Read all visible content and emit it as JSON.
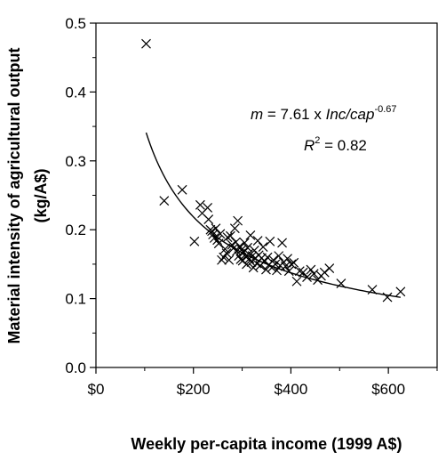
{
  "chart_data": {
    "type": "scatter",
    "xlabel": "Weekly per-capita income (1999 A$)",
    "ylabel_lines": [
      "Material intensity of agricultural output",
      "(kg/A$)"
    ],
    "xlim": [
      0,
      700
    ],
    "ylim": [
      0.0,
      0.5
    ],
    "x_ticks": [
      0,
      200,
      400,
      600
    ],
    "x_tick_labels": [
      "$0",
      "$200",
      "$400",
      "$600"
    ],
    "x_minor_ticks": [
      100,
      300,
      500,
      700
    ],
    "y_ticks": [
      0.0,
      0.1,
      0.2,
      0.3,
      0.4,
      0.5
    ],
    "y_tick_labels": [
      "0.0",
      "0.1",
      "0.2",
      "0.3",
      "0.4",
      "0.5"
    ],
    "y_minor_ticks": [
      0.05,
      0.15,
      0.25,
      0.35,
      0.45
    ],
    "grid": false,
    "legend": "none",
    "marker": "x",
    "marker_color": "#000000",
    "fit_color": "#000000",
    "annotation": {
      "line1": {
        "m": "m",
        "eq": " = 7.61 x ",
        "inc": "Inc",
        "slash": "/",
        "cap": "cap",
        "exp": "-0.67"
      },
      "line2": {
        "r": "R",
        "exp": "2",
        "val": " = 0.82"
      }
    },
    "fit": {
      "coefficient": 7.61,
      "exponent": -0.67,
      "x_range": [
        103,
        625
      ]
    },
    "points": [
      [
        103,
        0.47
      ],
      [
        140,
        0.242
      ],
      [
        177,
        0.258
      ],
      [
        202,
        0.183
      ],
      [
        214,
        0.236
      ],
      [
        218,
        0.224
      ],
      [
        229,
        0.232
      ],
      [
        231,
        0.215
      ],
      [
        235,
        0.2
      ],
      [
        238,
        0.198
      ],
      [
        240,
        0.193
      ],
      [
        243,
        0.188
      ],
      [
        246,
        0.202
      ],
      [
        249,
        0.185
      ],
      [
        252,
        0.18
      ],
      [
        255,
        0.194
      ],
      [
        258,
        0.156
      ],
      [
        262,
        0.16
      ],
      [
        265,
        0.172
      ],
      [
        268,
        0.166
      ],
      [
        270,
        0.189
      ],
      [
        273,
        0.156
      ],
      [
        276,
        0.191
      ],
      [
        279,
        0.178
      ],
      [
        282,
        0.173
      ],
      [
        285,
        0.202
      ],
      [
        287,
        0.182
      ],
      [
        289,
        0.169
      ],
      [
        291,
        0.213
      ],
      [
        293,
        0.162
      ],
      [
        295,
        0.176
      ],
      [
        297,
        0.157
      ],
      [
        299,
        0.171
      ],
      [
        301,
        0.155
      ],
      [
        303,
        0.167
      ],
      [
        305,
        0.181
      ],
      [
        307,
        0.161
      ],
      [
        309,
        0.15
      ],
      [
        311,
        0.174
      ],
      [
        313,
        0.165
      ],
      [
        315,
        0.158
      ],
      [
        317,
        0.192
      ],
      [
        319,
        0.153
      ],
      [
        321,
        0.162
      ],
      [
        323,
        0.145
      ],
      [
        325,
        0.17
      ],
      [
        327,
        0.159
      ],
      [
        330,
        0.151
      ],
      [
        332,
        0.184
      ],
      [
        334,
        0.163
      ],
      [
        337,
        0.148
      ],
      [
        340,
        0.159
      ],
      [
        343,
        0.175
      ],
      [
        346,
        0.154
      ],
      [
        349,
        0.142
      ],
      [
        352,
        0.16
      ],
      [
        355,
        0.149
      ],
      [
        357,
        0.183
      ],
      [
        361,
        0.145
      ],
      [
        364,
        0.156
      ],
      [
        368,
        0.15
      ],
      [
        371,
        0.141
      ],
      [
        375,
        0.162
      ],
      [
        378,
        0.148
      ],
      [
        382,
        0.181
      ],
      [
        385,
        0.153
      ],
      [
        389,
        0.147
      ],
      [
        393,
        0.158
      ],
      [
        396,
        0.14
      ],
      [
        401,
        0.15
      ],
      [
        406,
        0.152
      ],
      [
        412,
        0.125
      ],
      [
        418,
        0.14
      ],
      [
        425,
        0.138
      ],
      [
        433,
        0.131
      ],
      [
        441,
        0.142
      ],
      [
        447,
        0.136
      ],
      [
        455,
        0.127
      ],
      [
        462,
        0.133
      ],
      [
        469,
        0.138
      ],
      [
        479,
        0.144
      ],
      [
        503,
        0.122
      ],
      [
        567,
        0.113
      ],
      [
        598,
        0.102
      ],
      [
        625,
        0.11
      ]
    ]
  }
}
